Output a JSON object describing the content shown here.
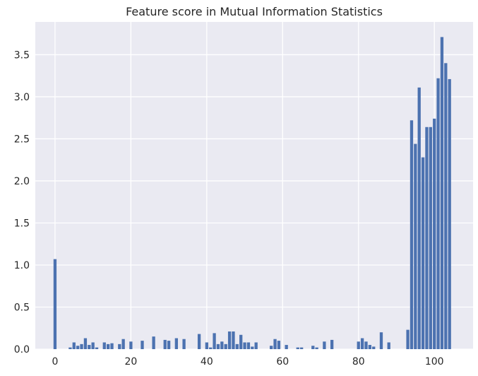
{
  "chart_data": {
    "type": "bar",
    "title": "Feature score in Mutual Information Statistics",
    "xlabel": "",
    "ylabel": "",
    "xlim": [
      -5.2,
      110.2
    ],
    "ylim": [
      0,
      3.89
    ],
    "xticks": [
      0,
      20,
      40,
      60,
      80,
      100
    ],
    "yticks": [
      0.0,
      0.5,
      1.0,
      1.5,
      2.0,
      2.5,
      3.0,
      3.5
    ],
    "grid": true,
    "colors": {
      "bar": "#4c72b0",
      "plot_bg": "#eaeaf2",
      "grid": "#ffffff",
      "text": "#262626"
    },
    "x": [
      0,
      1,
      2,
      3,
      4,
      5,
      6,
      7,
      8,
      9,
      10,
      11,
      12,
      13,
      14,
      15,
      16,
      17,
      18,
      19,
      20,
      21,
      22,
      23,
      24,
      25,
      26,
      27,
      28,
      29,
      30,
      31,
      32,
      33,
      34,
      35,
      36,
      37,
      38,
      39,
      40,
      41,
      42,
      43,
      44,
      45,
      46,
      47,
      48,
      49,
      50,
      51,
      52,
      53,
      54,
      55,
      56,
      57,
      58,
      59,
      60,
      61,
      62,
      63,
      64,
      65,
      66,
      67,
      68,
      69,
      70,
      71,
      72,
      73,
      74,
      75,
      76,
      77,
      78,
      79,
      80,
      81,
      82,
      83,
      84,
      85,
      86,
      87,
      88,
      89,
      90,
      91,
      92,
      93,
      94,
      95,
      96,
      97,
      98,
      99,
      100,
      101,
      102,
      103,
      104
    ],
    "values": [
      1.07,
      0,
      0,
      0,
      0.02,
      0.08,
      0.04,
      0.06,
      0.13,
      0.05,
      0.08,
      0.02,
      0,
      0.08,
      0.06,
      0.07,
      0,
      0.06,
      0.12,
      0,
      0.09,
      0,
      0,
      0.1,
      0,
      0,
      0.15,
      0,
      0,
      0.11,
      0.1,
      0,
      0.13,
      0,
      0.12,
      0,
      0,
      0,
      0.18,
      0,
      0.08,
      0.02,
      0.19,
      0.06,
      0.09,
      0.06,
      0.21,
      0.21,
      0.06,
      0.17,
      0.08,
      0.08,
      0.03,
      0.08,
      0,
      0,
      0,
      0.04,
      0.12,
      0.1,
      0,
      0.05,
      0,
      0,
      0.02,
      0.02,
      0,
      0,
      0.04,
      0.02,
      0,
      0.09,
      0,
      0.11,
      0,
      0,
      0,
      0,
      0,
      0,
      0.09,
      0.13,
      0.09,
      0.05,
      0.03,
      0,
      0.2,
      0,
      0.08,
      0,
      0,
      0,
      0,
      0.23,
      2.72,
      2.44,
      3.11,
      2.28,
      2.64,
      2.64,
      2.74,
      3.22,
      3.71,
      3.4,
      3.21
    ]
  }
}
